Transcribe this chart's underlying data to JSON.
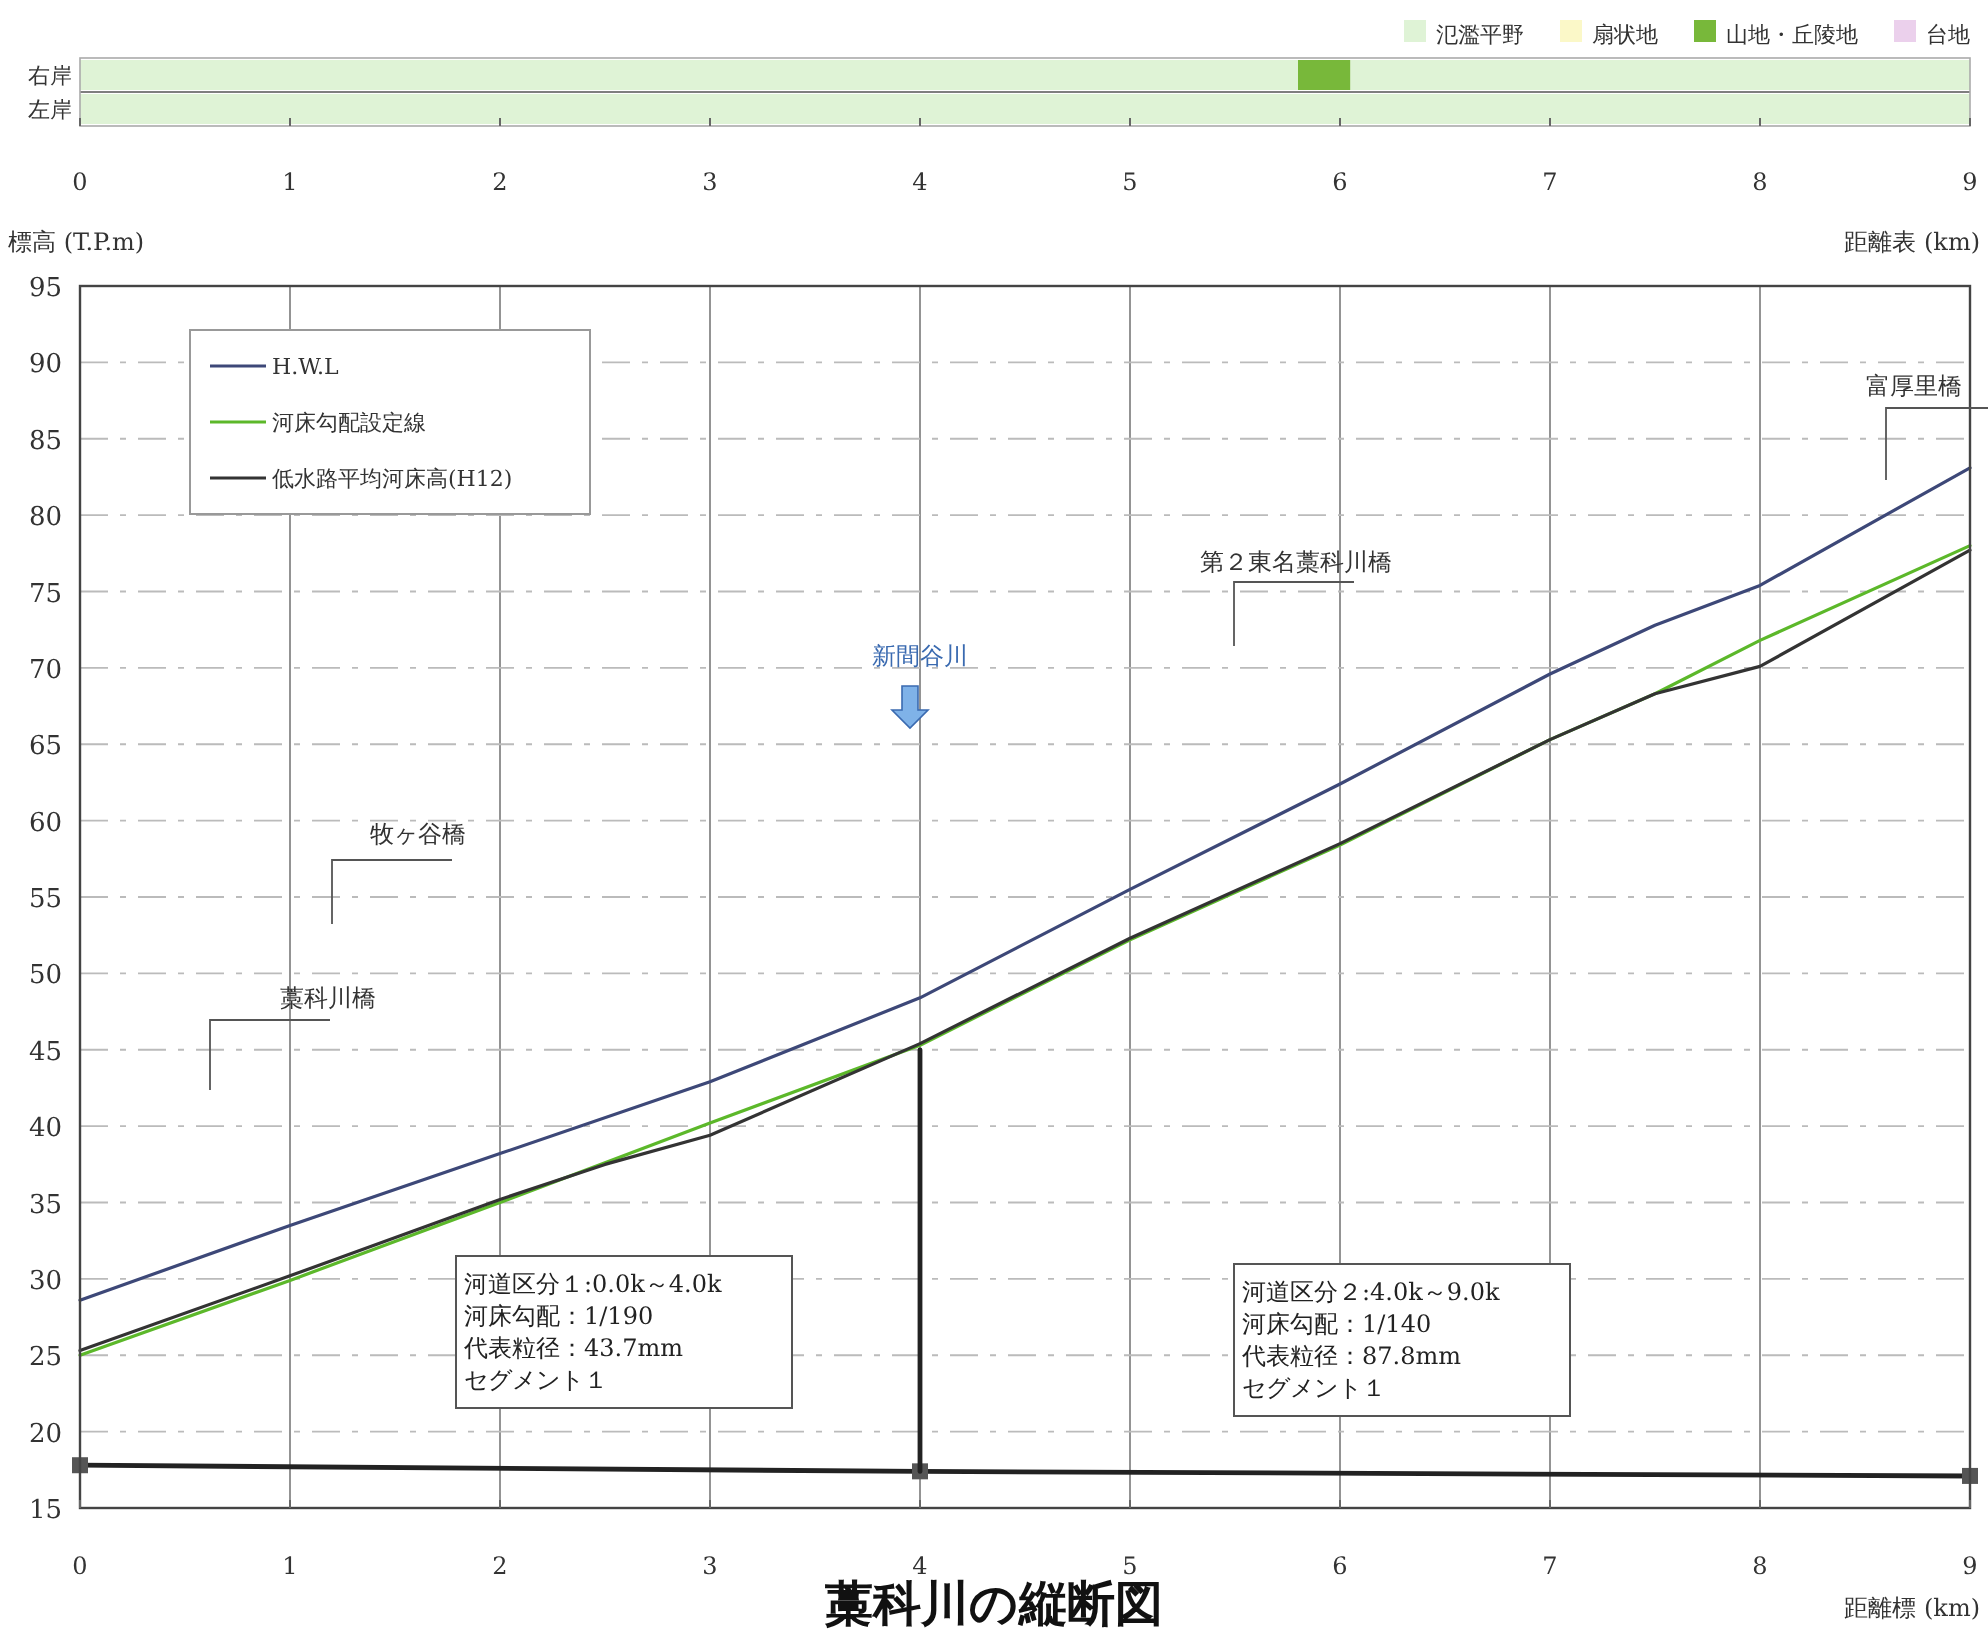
{
  "chart_data": [
    {
      "type": "bar",
      "orientation": "horizontal",
      "stacked": true,
      "categories": [
        "右岸",
        "左岸"
      ],
      "series": [
        {
          "name": "氾濫平野",
          "color": "#dff3d6",
          "values": [
            5.8,
            9
          ]
        },
        {
          "name": "扇状地",
          "color": "#fbf8c8",
          "values": [
            0,
            0
          ]
        },
        {
          "name": "山地・丘陵地",
          "color": "#78b83a",
          "values": [
            0.25,
            0
          ]
        },
        {
          "name": "台地",
          "color": "#ebd0ec",
          "values": [
            0,
            0
          ]
        },
        {
          "color": "#dff3d6",
          "values": [
            2.95,
            0
          ]
        }
      ],
      "xlim": [
        0,
        9
      ],
      "xticks": [
        0,
        1,
        2,
        3,
        4,
        5,
        6,
        7,
        8,
        9
      ],
      "xlabel": "距離表 (km)",
      "legend": "top right"
    },
    {
      "type": "line",
      "title": "藁科川の縦断図",
      "xlabel": "距離標 (km)",
      "ylabel": "標高 (T.P.m)",
      "xlim": [
        0,
        9
      ],
      "ylim": [
        15,
        95
      ],
      "xticks": [
        0,
        1,
        2,
        3,
        4,
        5,
        6,
        7,
        8,
        9
      ],
      "yticks": [
        15,
        20,
        25,
        30,
        35,
        40,
        45,
        50,
        55,
        60,
        65,
        70,
        75,
        80,
        85,
        90,
        95
      ],
      "grid": true,
      "legend": "top left",
      "marker": "none",
      "line_style": "solid",
      "series": [
        {
          "name": "H.W.L",
          "color": "#3d4878",
          "x": [
            0,
            1,
            2,
            3,
            4,
            5,
            6,
            7,
            7.5,
            8,
            9
          ],
          "values": [
            28.6,
            33.5,
            38.2,
            42.9,
            48.4,
            55.5,
            62.4,
            69.6,
            72.8,
            75.4,
            83.1
          ]
        },
        {
          "name": "河床勾配設定線",
          "color": "#5cb82a",
          "x": [
            0,
            1,
            2,
            3,
            4,
            5,
            6,
            7,
            7.5,
            8,
            9
          ],
          "values": [
            25.0,
            29.9,
            35.0,
            40.2,
            45.3,
            52.2,
            58.4,
            65.3,
            68.3,
            71.8,
            78.0
          ]
        },
        {
          "name": "低水路平均河床高(H12)",
          "color": "#333333",
          "x": [
            0,
            1,
            2,
            2.5,
            3,
            4,
            5,
            6,
            7,
            7.5,
            8,
            9
          ],
          "values": [
            25.3,
            30.2,
            35.2,
            37.5,
            39.4,
            45.4,
            52.3,
            58.5,
            65.3,
            68.3,
            70.1,
            77.7
          ]
        },
        {
          "color": "#222222",
          "x": [
            0,
            4,
            9
          ],
          "values": [
            17.8,
            17.4,
            17.1
          ],
          "marker": "square"
        },
        {
          "color": "#222222",
          "x": [
            4,
            4
          ],
          "values": [
            17.4,
            45.0
          ]
        }
      ],
      "annotations": [
        "藁科川橋",
        "牧ヶ谷橋",
        "新間谷川",
        "第２東名藁科川橋",
        "富厚里橋",
        "河道区分１:0.0k～4.0k\n河床勾配：1/190\n代表粒径：43.7mm\nセグメント１",
        "河道区分２:4.0k～9.0k\n河床勾配：1/140\n代表粒径：87.8mm\nセグメント１"
      ]
    }
  ]
}
